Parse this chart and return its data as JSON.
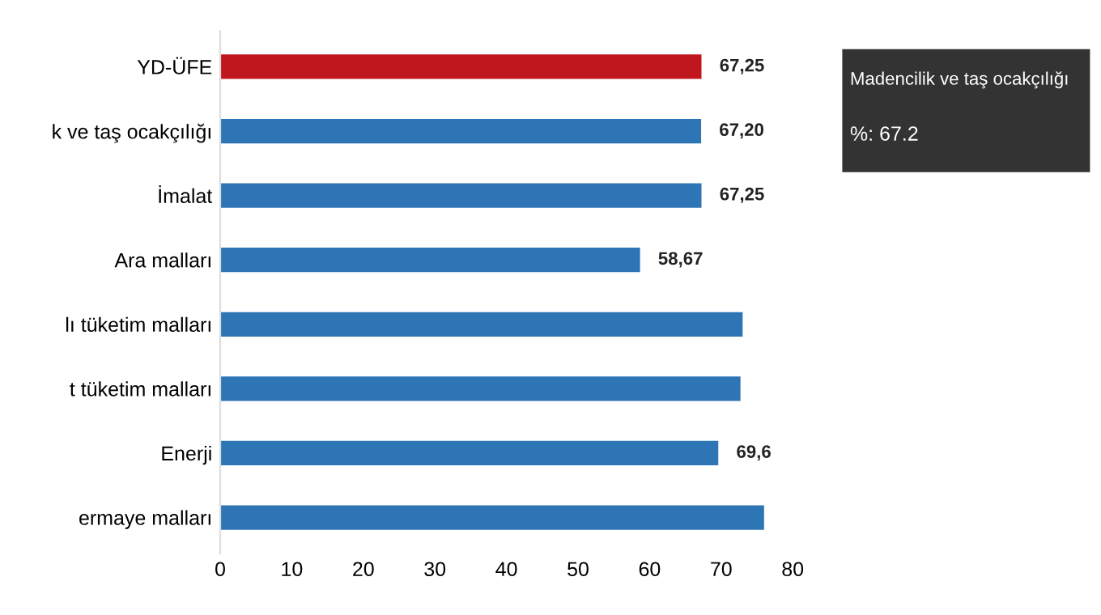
{
  "chart_data": {
    "type": "bar",
    "orientation": "horizontal",
    "categories": [
      "YD-ÜFE",
      "k ve taş ocakçılığı",
      "İmalat",
      "Ara malları",
      "lı tüketim malları",
      "t tüketim malları",
      "Enerji",
      "ermaye malları"
    ],
    "values": [
      67.25,
      67.2,
      67.25,
      58.67,
      73,
      72.7,
      69.6,
      76
    ],
    "colors": [
      "#c0171f",
      "#2e75b6",
      "#2e75b6",
      "#2e75b6",
      "#2e75b6",
      "#2e75b6",
      "#2e75b6",
      "#2e75b6"
    ],
    "value_labels": [
      "67,25",
      "67,20",
      "67,25",
      "58,67",
      null,
      null,
      "69,6",
      null
    ],
    "xlim": [
      0,
      80
    ],
    "xticks": [
      0,
      10,
      20,
      30,
      40,
      50,
      60,
      70,
      80
    ],
    "annotations": [
      "Madencilik ve taş ocakçılığı",
      "%: 67.2"
    ],
    "grid": false,
    "legend": false
  }
}
